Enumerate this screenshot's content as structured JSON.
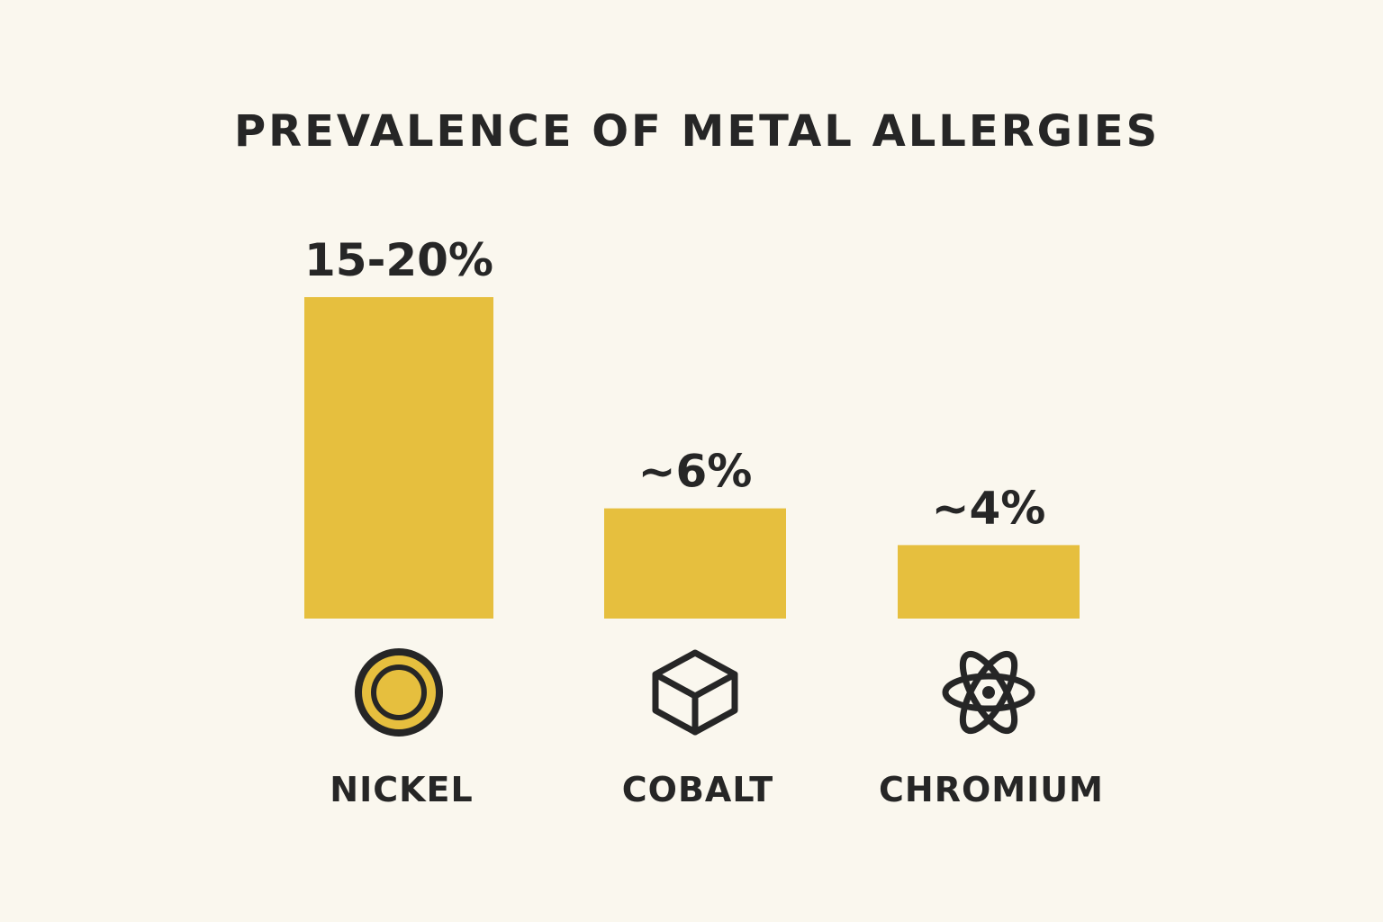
{
  "colors": {
    "background": "#faf7ee",
    "bar": "#e6bf3e",
    "text": "#262626"
  },
  "chart_data": {
    "type": "bar",
    "title": "PREVALENCE OF METAL ALLERGIES",
    "xlabel": "",
    "ylabel": "",
    "unit": "%",
    "grid": false,
    "legend": "none",
    "ylim": [
      0,
      20
    ],
    "categories": [
      "NICKEL",
      "COBALT",
      "CHROMIUM"
    ],
    "values": [
      17.5,
      6,
      4
    ],
    "value_labels": [
      "15-20%",
      "~6%",
      "~4%"
    ],
    "icons": [
      "coin-icon",
      "cube-icon",
      "atom-icon"
    ]
  }
}
